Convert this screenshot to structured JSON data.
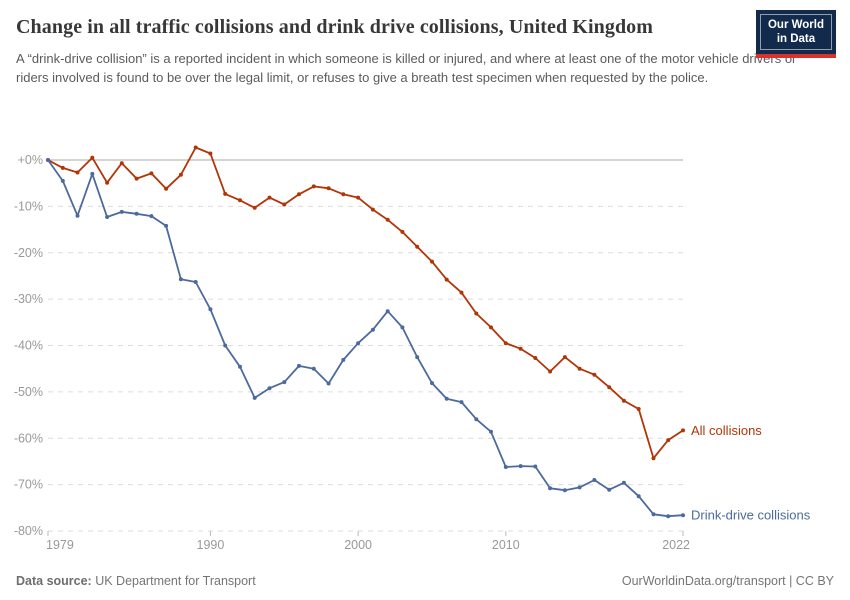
{
  "header": {
    "title": "Change in all traffic collisions and drink drive collisions, United Kingdom",
    "subtitle": "A “drink-drive collision” is a reported incident in which someone is killed or injured, and where at least one of the motor vehicle drivers or riders involved is found to be over the legal limit, or refuses to give a breath test specimen when requested by the police.",
    "logo": {
      "line1": "Our World",
      "line2": "in Data"
    }
  },
  "footer": {
    "source_label": "Data source:",
    "source_value": " UK Department for Transport",
    "attribution": "OurWorldinData.org/transport | CC BY"
  },
  "chart_data": {
    "type": "line",
    "title": "Change in all traffic collisions and drink drive collisions, United Kingdom",
    "xlabel": "",
    "ylabel": "",
    "x": [
      1979,
      1980,
      1981,
      1982,
      1983,
      1984,
      1985,
      1986,
      1987,
      1988,
      1989,
      1990,
      1991,
      1992,
      1993,
      1994,
      1995,
      1996,
      1997,
      1998,
      1999,
      2000,
      2001,
      2002,
      2003,
      2004,
      2005,
      2006,
      2007,
      2008,
      2009,
      2010,
      2011,
      2012,
      2013,
      2014,
      2015,
      2016,
      2017,
      2018,
      2019,
      2020,
      2021,
      2022
    ],
    "series": [
      {
        "name": "All collisions",
        "color": "#B13507",
        "values": [
          0,
          -1.7,
          -2.7,
          0.5,
          -4.9,
          -0.7,
          -4.0,
          -2.9,
          -6.2,
          -3.2,
          2.7,
          1.4,
          -7.3,
          -8.7,
          -10.3,
          -8.1,
          -9.6,
          -7.4,
          -5.7,
          -6.1,
          -7.4,
          -8.1,
          -10.7,
          -12.9,
          -15.5,
          -18.7,
          -21.9,
          -25.8,
          -28.6,
          -33.1,
          -36.1,
          -39.5,
          -40.7,
          -42.7,
          -45.6,
          -42.5,
          -45.0,
          -46.3,
          -49.0,
          -51.9,
          -53.7,
          -64.3,
          -60.4,
          -58.3
        ]
      },
      {
        "name": "Drink-drive collisions",
        "color": "#4C6A9C",
        "values": [
          0,
          -4.5,
          -12.0,
          -3.0,
          -12.3,
          -11.2,
          -11.6,
          -12.1,
          -14.2,
          -25.7,
          -26.3,
          -32.2,
          -40.0,
          -44.6,
          -51.3,
          -49.2,
          -47.9,
          -44.4,
          -45.0,
          -48.2,
          -43.1,
          -39.5,
          -36.6,
          -32.6,
          -36.1,
          -42.5,
          -48.1,
          -51.5,
          -52.2,
          -55.9,
          -58.6,
          -66.2,
          -66.0,
          -66.1,
          -70.8,
          -71.2,
          -70.6,
          -69.0,
          -71.1,
          -69.6,
          -72.5,
          -76.4,
          -76.8,
          -76.6
        ]
      }
    ],
    "xlim": [
      1979,
      2022
    ],
    "ylim": [
      -80,
      3
    ],
    "xticks": [
      1979,
      1990,
      2000,
      2010,
      2022
    ],
    "yticks": [
      0,
      -10,
      -20,
      -30,
      -40,
      -50,
      -60,
      -70,
      -80
    ],
    "ytick_labels": [
      "+0%",
      "-10%",
      "-20%",
      "-30%",
      "-40%",
      "-50%",
      "-60%",
      "-70%",
      "-80%"
    ],
    "grid": "dashed-horizontal",
    "zero_line": true,
    "legend_position": "end-of-line-labels",
    "unit": "%"
  },
  "colors": {
    "grid": "#dcdcdc",
    "zero_line": "#a8a8a8",
    "axis_text": "#999999",
    "logo_bg": "#122B4D",
    "logo_bar": "#D5332B"
  }
}
